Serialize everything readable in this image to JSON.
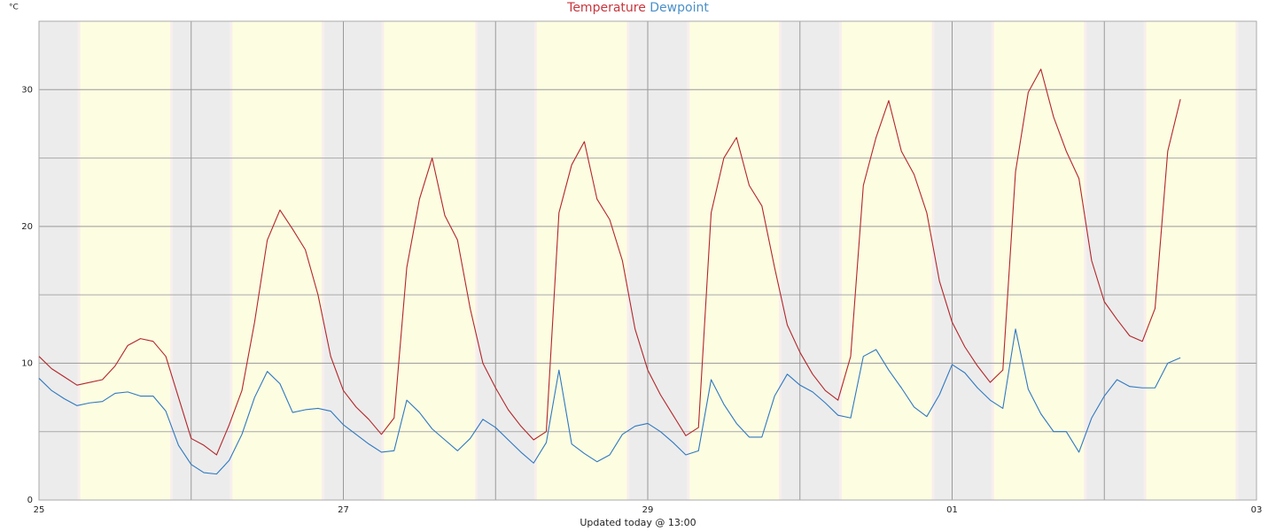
{
  "chart_data": {
    "type": "line",
    "unit_label": "°C",
    "footer": "Updated today @ 13:00",
    "x": [
      0,
      2,
      4,
      6,
      8,
      10,
      12,
      14,
      16,
      18,
      20,
      22,
      24,
      26,
      28,
      30,
      32,
      34,
      36,
      38,
      40,
      42,
      44,
      46,
      48,
      50,
      52,
      54,
      56,
      58,
      60,
      62,
      64,
      66,
      68,
      70,
      72,
      74,
      76,
      78,
      80,
      82,
      84,
      86,
      88,
      90,
      92,
      94,
      96,
      98,
      100,
      102,
      104,
      106,
      108,
      110,
      112,
      114,
      116,
      118,
      120,
      122,
      124,
      126,
      128,
      130,
      132,
      134,
      136,
      138,
      140,
      142,
      144,
      146,
      148,
      150,
      152,
      154,
      156,
      158,
      160,
      162,
      164,
      166,
      168,
      170,
      172,
      174,
      176,
      178,
      180
    ],
    "series": [
      {
        "name": "Temperature",
        "color": "#b3262a",
        "label_color": "#c8363d",
        "values": [
          10.5,
          9.6,
          9.0,
          8.4,
          8.6,
          8.8,
          9.8,
          11.3,
          11.8,
          11.6,
          10.5,
          7.5,
          4.5,
          4.0,
          3.3,
          5.5,
          8.0,
          13.0,
          19.0,
          21.2,
          19.8,
          18.3,
          15.0,
          10.5,
          8.0,
          6.8,
          5.9,
          4.8,
          6.0,
          17.0,
          22.0,
          25.0,
          20.8,
          19.0,
          14.0,
          10.0,
          8.2,
          6.6,
          5.4,
          4.4,
          5.0,
          21.0,
          24.5,
          26.2,
          22.0,
          20.5,
          17.5,
          12.5,
          9.5,
          7.7,
          6.2,
          4.7,
          5.3,
          21.0,
          25.0,
          26.5,
          23.0,
          21.5,
          17.0,
          12.8,
          10.8,
          9.2,
          8.0,
          7.3,
          10.5,
          23.0,
          26.5,
          29.2,
          25.5,
          23.8,
          21.0,
          16.0,
          13.0,
          11.2,
          9.8,
          8.6,
          9.5,
          24.0,
          29.8,
          31.5,
          28.0,
          25.5,
          23.5,
          17.5,
          14.5,
          13.2,
          12.0,
          11.6,
          14.0,
          25.5,
          29.3
        ]
      },
      {
        "name": "Dewpoint",
        "color": "#2f78c0",
        "label_color": "#4a90c8",
        "values": [
          8.9,
          8.0,
          7.4,
          6.9,
          7.1,
          7.2,
          7.8,
          7.9,
          7.6,
          7.6,
          6.5,
          4.0,
          2.6,
          2.0,
          1.9,
          2.9,
          4.8,
          7.5,
          9.4,
          8.5,
          6.4,
          6.6,
          6.7,
          6.5,
          5.5,
          4.8,
          4.1,
          3.5,
          3.6,
          7.3,
          6.4,
          5.2,
          4.4,
          3.6,
          4.5,
          5.9,
          5.3,
          4.4,
          3.5,
          2.7,
          4.2,
          9.5,
          4.1,
          3.4,
          2.8,
          3.3,
          4.8,
          5.4,
          5.6,
          5.0,
          4.2,
          3.3,
          3.6,
          8.8,
          7.0,
          5.6,
          4.6,
          4.6,
          7.6,
          9.2,
          8.4,
          7.9,
          7.1,
          6.2,
          6.0,
          10.5,
          11.0,
          9.5,
          8.2,
          6.8,
          6.1,
          7.7,
          9.9,
          9.3,
          8.2,
          7.3,
          6.7,
          12.5,
          8.1,
          6.3,
          5.0,
          5.0,
          3.5,
          6.0,
          7.6,
          8.8,
          8.3,
          8.2,
          8.2,
          10.0,
          10.4
        ]
      }
    ],
    "xlim": [
      0,
      192
    ],
    "xticks": [
      {
        "value": 0,
        "label": "25"
      },
      {
        "value": 48,
        "label": "27"
      },
      {
        "value": 96,
        "label": "29"
      },
      {
        "value": 144,
        "label": "01"
      },
      {
        "value": 192,
        "label": "03"
      }
    ],
    "minor_xticks": [
      24,
      72,
      120,
      168
    ],
    "ylim": [
      0,
      35
    ],
    "yticks": [
      0,
      10,
      20,
      30
    ],
    "minor_yticks": [
      5,
      15,
      25,
      35
    ],
    "grid": true,
    "daylight": [
      [
        6.5,
        20.7
      ],
      [
        30.5,
        44.6
      ],
      [
        54.4,
        68.8
      ],
      [
        78.5,
        92.7
      ],
      [
        102.6,
        116.7
      ],
      [
        126.6,
        140.8
      ],
      [
        150.6,
        164.8
      ],
      [
        174.6,
        188.7
      ]
    ]
  }
}
